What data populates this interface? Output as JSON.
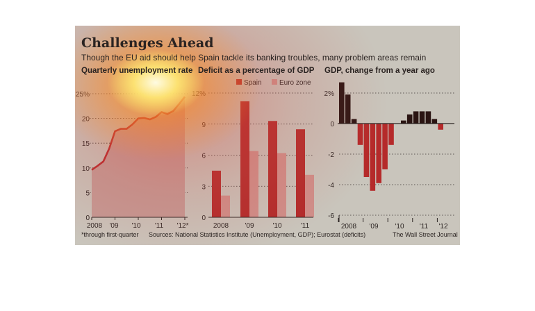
{
  "header": {
    "title": "Challenges Ahead",
    "subtitle": "Though the EU aid should help Spain tackle its banking troubles, many problem areas remain"
  },
  "footer": {
    "footnote": "*through first-quarter",
    "sources": "Sources: National Statistics Institute (Unemployment, GDP); Eurostat (deficits)",
    "credit": "The Wall Street Journal"
  },
  "colors": {
    "background": "#c9c5bc",
    "unemployment_line": "#b8262a",
    "unemployment_fill": "#c49a95",
    "spain": "#b22a2a",
    "euro_zone": "#cf8f8a",
    "gdp_positive": "#2a1412",
    "gdp_negative": "#b52a2a"
  },
  "chart_data": [
    {
      "type": "area",
      "title": "Quarterly unemployment rate",
      "x_tick_labels": [
        "2008",
        "'09",
        "'10",
        "'11",
        "'12*"
      ],
      "y_tick_labels": [
        "25%",
        "20",
        "15",
        "10",
        "5",
        "0"
      ],
      "y_ticks": [
        25,
        20,
        15,
        10,
        5,
        0
      ],
      "ylim": [
        0,
        25
      ],
      "x": [
        "Q1 2008",
        "Q2 2008",
        "Q3 2008",
        "Q4 2008",
        "Q1 2009",
        "Q2 2009",
        "Q3 2009",
        "Q4 2009",
        "Q1 2010",
        "Q2 2010",
        "Q3 2010",
        "Q4 2010",
        "Q1 2011",
        "Q2 2011",
        "Q3 2011",
        "Q4 2011",
        "Q1 2012"
      ],
      "values": [
        9.6,
        10.4,
        11.3,
        13.9,
        17.4,
        17.9,
        17.9,
        18.8,
        20.0,
        20.1,
        19.8,
        20.3,
        21.3,
        20.9,
        21.5,
        22.9,
        24.4
      ],
      "grid": true
    },
    {
      "type": "bar",
      "title": "Deficit as a percentage of GDP",
      "categories": [
        "2008",
        "'09",
        "'10",
        "'11"
      ],
      "series": [
        {
          "name": "Spain",
          "values": [
            4.5,
            11.2,
            9.3,
            8.5
          ]
        },
        {
          "name": "Euro zone",
          "values": [
            2.1,
            6.4,
            6.2,
            4.1
          ]
        }
      ],
      "y_tick_labels": [
        "12%",
        "9",
        "6",
        "3",
        "0"
      ],
      "y_ticks": [
        12,
        9,
        6,
        3,
        0
      ],
      "ylim": [
        0,
        12
      ],
      "legend": "top-right",
      "grid": true
    },
    {
      "type": "bar",
      "title": "GDP, change from a year ago",
      "x_tick_labels": [
        "2008",
        "'09",
        "'10",
        "'11",
        "'12"
      ],
      "values": [
        2.7,
        1.9,
        0.3,
        -1.4,
        -3.5,
        -4.4,
        -3.9,
        -3.0,
        -1.4,
        0.0,
        0.2,
        0.6,
        0.8,
        0.8,
        0.8,
        0.3,
        -0.4
      ],
      "y_tick_labels": [
        "2%",
        "0",
        "-2",
        "-4",
        "-6"
      ],
      "y_ticks": [
        2,
        0,
        -2,
        -4,
        -6
      ],
      "ylim": [
        -6,
        2
      ],
      "grid": true
    }
  ]
}
